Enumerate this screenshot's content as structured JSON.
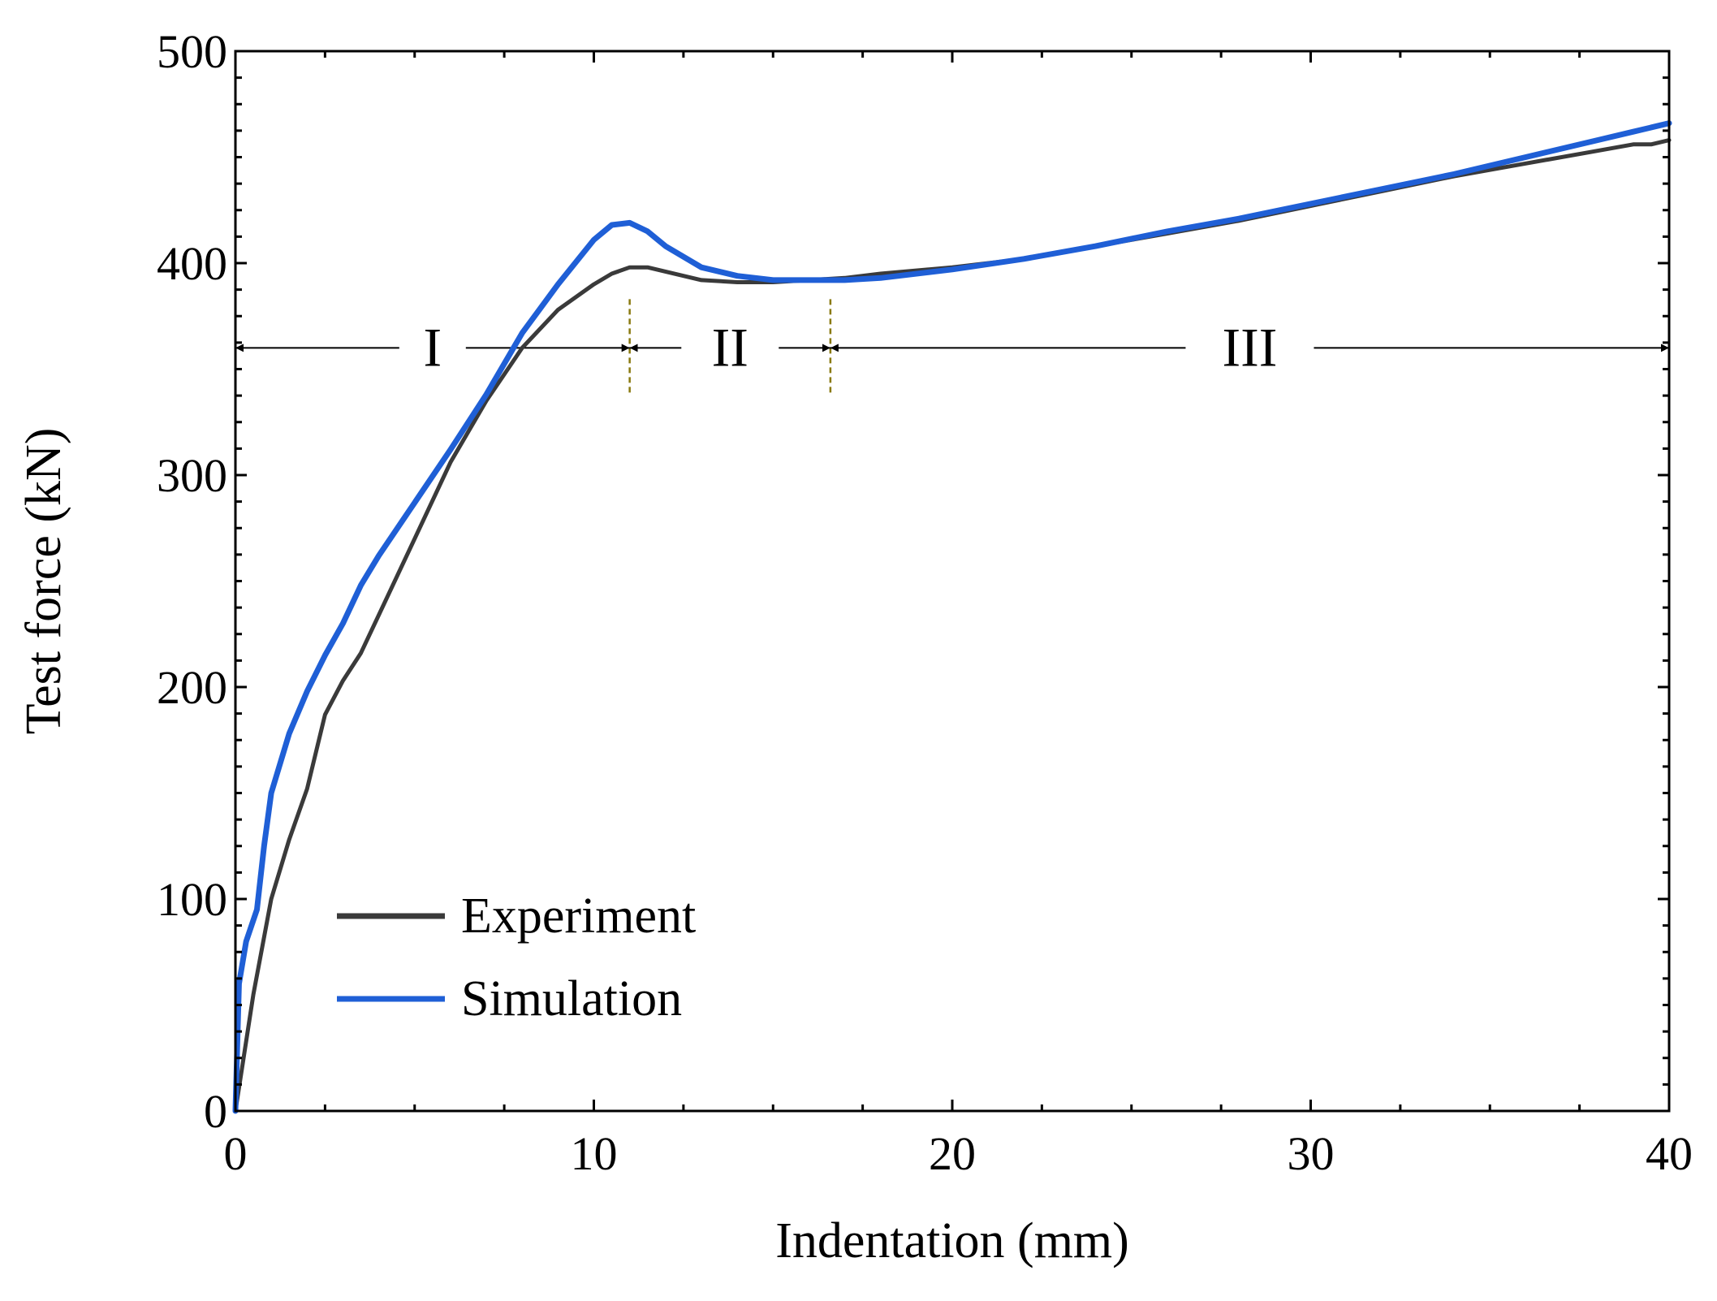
{
  "chart_data": {
    "type": "line",
    "title": "",
    "xlabel": "Indentation (mm)",
    "ylabel": "Test force (kN)",
    "xlim": [
      0,
      40
    ],
    "ylim": [
      0,
      500
    ],
    "xticks": [
      0,
      10,
      20,
      30,
      40
    ],
    "yticks": [
      0,
      100,
      200,
      300,
      400,
      500
    ],
    "xtick_labels": [
      "0",
      "10",
      "20",
      "30",
      "40"
    ],
    "ytick_labels": [
      "0",
      "100",
      "200",
      "300",
      "400",
      "500"
    ],
    "grid": false,
    "legend_position": "bottom-left",
    "series": [
      {
        "name": "Experiment",
        "color": "#3a3a3a",
        "x": [
          0,
          0.5,
          1,
          1.5,
          2,
          2.5,
          3,
          3.5,
          4,
          5,
          6,
          7,
          8,
          9,
          10,
          10.5,
          11,
          11.5,
          12,
          13,
          14,
          15,
          16,
          17,
          18,
          20,
          22,
          24,
          26,
          28,
          30,
          32,
          34,
          36,
          38,
          39,
          39.5,
          40
        ],
        "y": [
          0,
          55,
          100,
          128,
          152,
          187,
          203,
          216,
          234,
          270,
          306,
          335,
          360,
          378,
          390,
          395,
          398,
          398,
          396,
          392,
          391,
          391,
          392,
          393,
          395,
          398,
          402,
          408,
          414,
          420,
          427,
          434,
          441,
          447,
          453,
          456,
          456,
          458
        ]
      },
      {
        "name": "Simulation",
        "color": "#1f5fd6",
        "x": [
          0,
          0.1,
          0.3,
          0.6,
          0.8,
          1,
          1.5,
          2,
          2.5,
          3,
          3.5,
          4,
          5,
          6,
          7,
          8,
          9,
          10,
          10.5,
          11,
          11.5,
          12,
          13,
          14,
          15,
          16,
          17,
          18,
          20,
          22,
          24,
          26,
          28,
          30,
          32,
          34,
          36,
          38,
          39,
          40
        ],
        "y": [
          0,
          60,
          80,
          95,
          125,
          150,
          178,
          198,
          215,
          230,
          248,
          262,
          287,
          312,
          338,
          367,
          390,
          411,
          418,
          419,
          415,
          408,
          398,
          394,
          392,
          392,
          392,
          393,
          397,
          402,
          408,
          415,
          421,
          428,
          435,
          442,
          450,
          458,
          462,
          466
        ]
      }
    ],
    "regions": [
      {
        "label": "I",
        "x_start": 0,
        "x_end": 11
      },
      {
        "label": "II",
        "x_start": 11,
        "x_end": 16.6
      },
      {
        "label": "III",
        "x_start": 16.6,
        "x_end": 40
      }
    ],
    "region_arrow_y": 360,
    "region_boundaries": [
      {
        "x": 11,
        "y_min": 337,
        "y_max": 383
      },
      {
        "x": 16.6,
        "y_min": 337,
        "y_max": 383
      }
    ],
    "boundary_color": "#8a7a10"
  }
}
